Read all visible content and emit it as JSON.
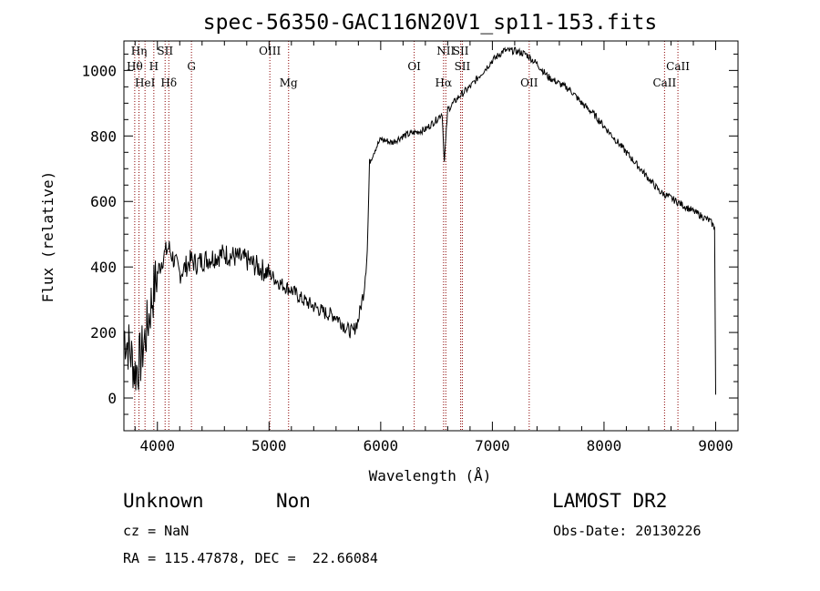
{
  "chart_data": {
    "type": "line",
    "title": "spec-56350-GAC116N20V1_sp11-153.fits",
    "xlabel": "Wavelength (Å)",
    "ylabel": "Flux (relative)",
    "xlim": [
      3700,
      9200
    ],
    "ylim": [
      -100,
      1090
    ],
    "x_ticks": [
      4000,
      5000,
      6000,
      7000,
      8000,
      9000
    ],
    "y_ticks": [
      0,
      200,
      400,
      600,
      800,
      1000
    ],
    "grid": false,
    "line_color": "#000000",
    "marker_color": "#8b0000",
    "series": [
      {
        "x": [
          3700,
          3750,
          3800,
          3850,
          3900,
          3950,
          4000,
          4050,
          4100,
          4150,
          4200,
          4250,
          4300,
          4350,
          4400,
          4500,
          4600,
          4700,
          4800,
          4900,
          5000,
          5100,
          5200,
          5300,
          5400,
          5500,
          5600,
          5700,
          5750,
          5800,
          5850,
          5880,
          5900,
          5950,
          6000,
          6100,
          6200,
          6300,
          6400,
          6500,
          6550,
          6570,
          6600,
          6700,
          6800,
          6900,
          7000,
          7100,
          7200,
          7300,
          7400,
          7500,
          7600,
          7700,
          7800,
          7900,
          8000,
          8100,
          8200,
          8300,
          8400,
          8500,
          8600,
          8700,
          8800,
          8900,
          8950,
          8990,
          9000
        ],
        "y": [
          200,
          150,
          80,
          120,
          200,
          300,
          380,
          430,
          460,
          420,
          380,
          400,
          420,
          410,
          420,
          430,
          440,
          430,
          420,
          400,
          380,
          350,
          330,
          300,
          280,
          260,
          250,
          210,
          200,
          240,
          330,
          450,
          720,
          760,
          790,
          780,
          800,
          810,
          820,
          850,
          870,
          720,
          880,
          920,
          950,
          990,
          1030,
          1060,
          1060,
          1050,
          1020,
          980,
          960,
          940,
          900,
          870,
          830,
          790,
          750,
          710,
          670,
          630,
          610,
          590,
          570,
          550,
          540,
          520,
          10
        ]
      }
    ]
  },
  "spectral_lines": [
    {
      "label": "Hη",
      "wl": 3835,
      "row": 0
    },
    {
      "label": "Hθ",
      "wl": 3797,
      "row": 1
    },
    {
      "label": "HeI",
      "wl": 3889,
      "row": 2
    },
    {
      "label": "SII",
      "wl": 4069,
      "row": 0
    },
    {
      "label": "H",
      "wl": 3968,
      "row": 1
    },
    {
      "label": "Hδ",
      "wl": 4102,
      "row": 2
    },
    {
      "label": "G",
      "wl": 4305,
      "row": 1
    },
    {
      "label": "OIII",
      "wl": 5007,
      "row": 0
    },
    {
      "label": "Mg",
      "wl": 5175,
      "row": 2
    },
    {
      "label": "OI",
      "wl": 6300,
      "row": 1
    },
    {
      "label": "NII",
      "wl": 6583,
      "row": 0
    },
    {
      "label": "Hα",
      "wl": 6563,
      "row": 2
    },
    {
      "label": "SII",
      "wl": 6716,
      "row": 0
    },
    {
      "label": "SII",
      "wl": 6731,
      "row": 1
    },
    {
      "label": "OII",
      "wl": 7330,
      "row": 2
    },
    {
      "label": "CaII",
      "wl": 8662,
      "row": 1
    },
    {
      "label": "CaII",
      "wl": 8542,
      "row": 2
    }
  ],
  "info": {
    "class": "Unknown",
    "subclass": "Non",
    "cz": "cz = NaN",
    "coords": "RA = 115.47878, DEC =  22.66084",
    "survey": "LAMOST DR2",
    "obs_date": "Obs-Date: 20130226"
  }
}
